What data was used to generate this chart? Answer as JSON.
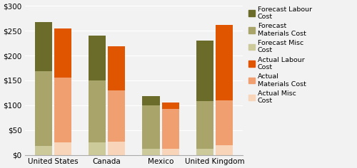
{
  "categories": [
    "United States",
    "Canada",
    "Mexico",
    "United Kingdom"
  ],
  "forecast": {
    "misc": [
      18,
      25,
      13,
      13
    ],
    "materials": [
      150,
      125,
      87,
      95
    ],
    "labour": [
      100,
      90,
      18,
      122
    ]
  },
  "actual": {
    "misc": [
      25,
      27,
      13,
      20
    ],
    "materials": [
      130,
      103,
      80,
      90
    ],
    "labour": [
      100,
      88,
      13,
      152
    ]
  },
  "colors": {
    "forecast_labour": "#6b6b2a",
    "forecast_materials": "#a8a46a",
    "forecast_misc": "#ccc99a",
    "actual_labour": "#e05500",
    "actual_materials": "#f0a070",
    "actual_misc": "#f8d5b8"
  },
  "legend_labels": [
    "Forecast Labour\nCost",
    "Forecast\nMaterials Cost",
    "Forecast Misc\nCost",
    "Actual Labour\nCost",
    "Actual\nMaterials Cost",
    "Actual Misc\nCost"
  ],
  "ylim": [
    0,
    300
  ],
  "yticks": [
    0,
    50,
    100,
    150,
    200,
    250,
    300
  ],
  "ytick_labels": [
    "$0",
    "$50",
    "$100",
    "$150",
    "$200",
    "$250",
    "$300"
  ],
  "bar_width": 0.32,
  "bar_gap": 0.02,
  "figsize": [
    5.0,
    2.36
  ],
  "dpi": 100,
  "bg_color": "#f2f2f2"
}
